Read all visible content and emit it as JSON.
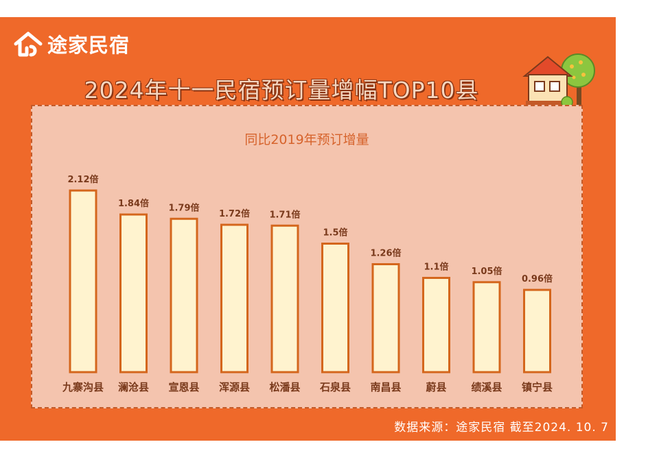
{
  "brand": {
    "name": "途家民宿"
  },
  "title": "2024年十一民宿预订量增幅TOP10县",
  "source": "数据来源：途家民宿  截至2024. 10. 7",
  "colors": {
    "background": "#ef692a",
    "panel": "#f4c4ae",
    "bar_fill": "#fff3cf",
    "bar_stroke": "#d4661c",
    "label": "#7a3a1c"
  },
  "chart_data": {
    "type": "bar",
    "title": "同比2019年预订增量",
    "xlabel": "",
    "ylabel": "",
    "ylim": [
      0,
      2.4
    ],
    "grid": false,
    "categories": [
      "九寨沟县",
      "澜沧县",
      "宣恩县",
      "浑源县",
      "松潘县",
      "石泉县",
      "南昌县",
      "蔚县",
      "绩溪县",
      "镇宁县"
    ],
    "values": [
      2.12,
      1.84,
      1.79,
      1.72,
      1.71,
      1.5,
      1.26,
      1.1,
      1.05,
      0.96
    ],
    "value_labels": [
      "2.12倍",
      "1.84倍",
      "1.79倍",
      "1.72倍",
      "1.71倍",
      "1.5倍",
      "1.26倍",
      "1.1倍",
      "1.05倍",
      "0.96倍"
    ]
  }
}
